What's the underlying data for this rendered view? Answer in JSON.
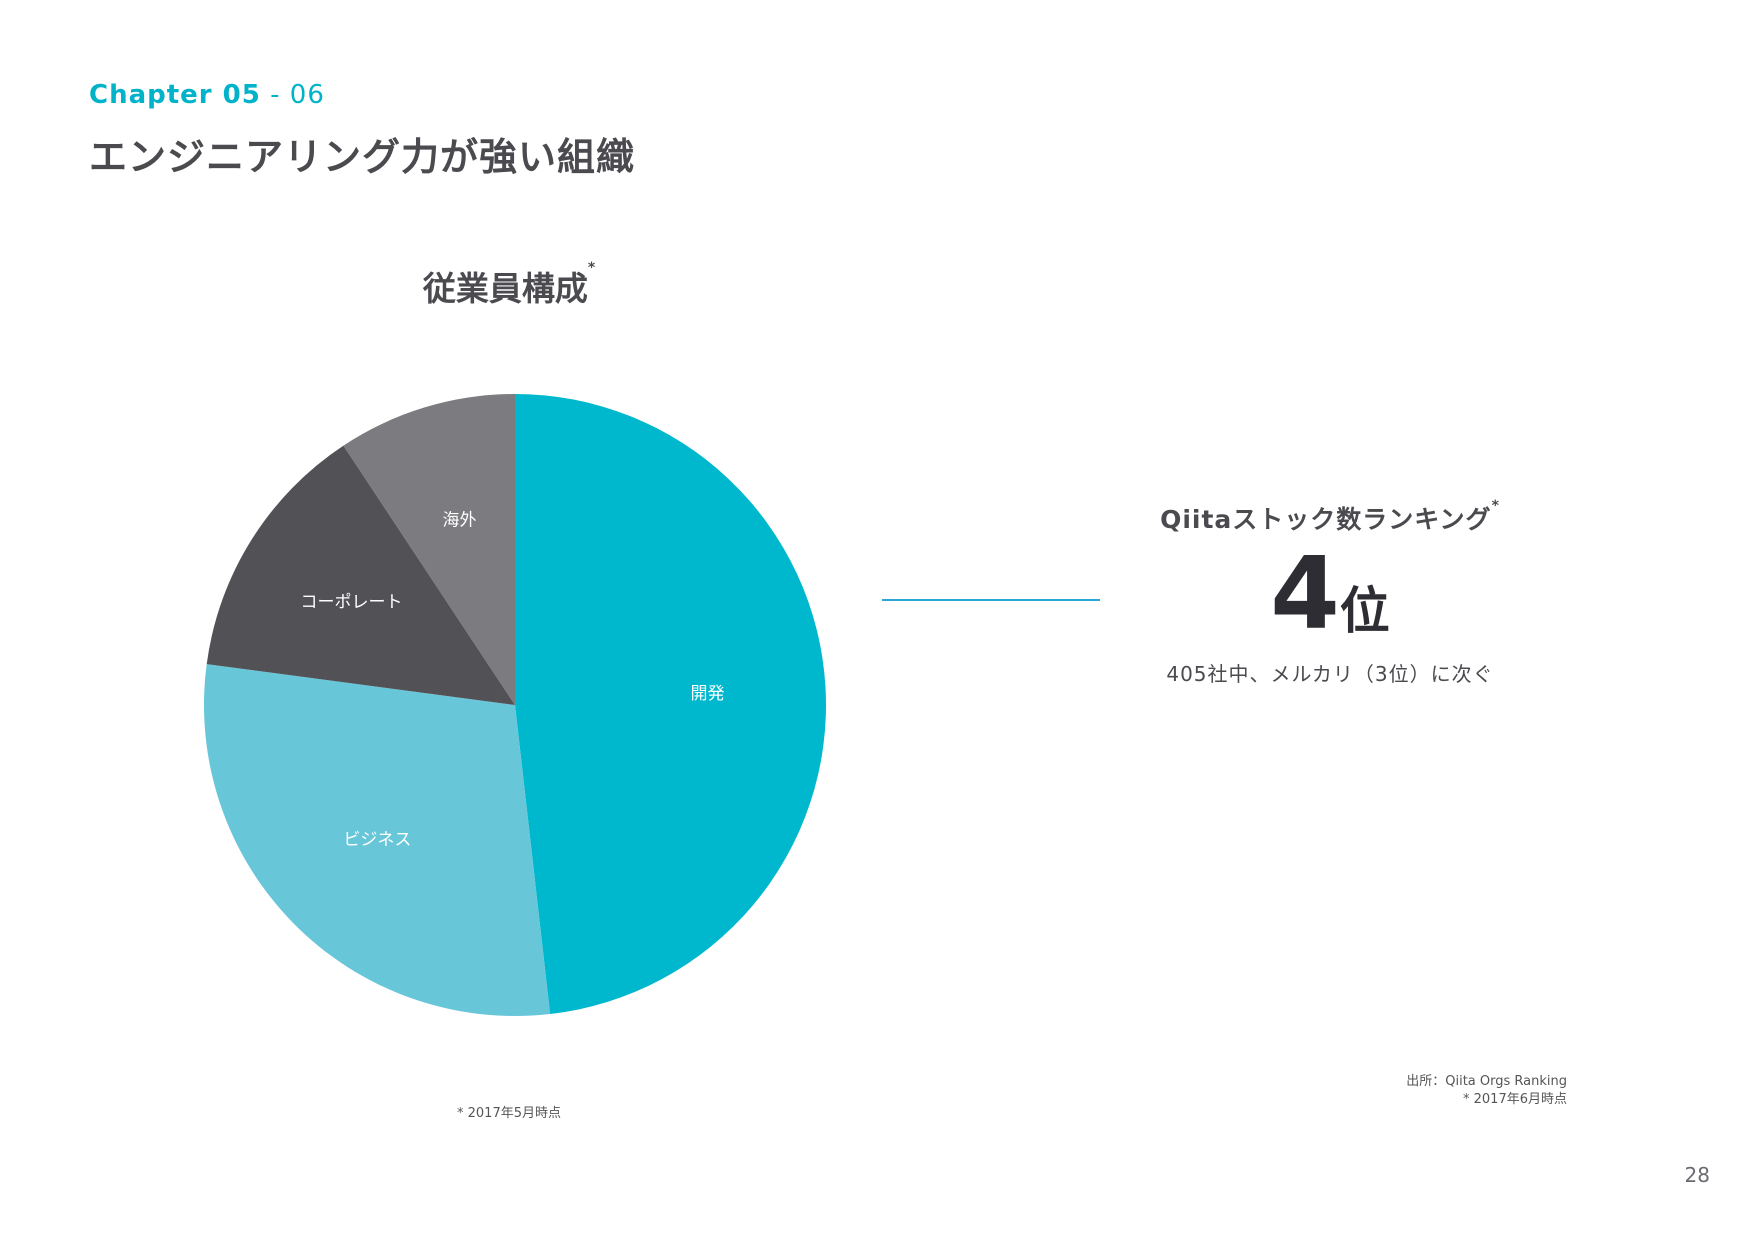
{
  "header": {
    "chapter_main": "Chapter 05",
    "chapter_sub": " - 06",
    "title": "エンジニアリング力が強い組織"
  },
  "chart_data": {
    "type": "pie",
    "title": "従業員構成",
    "title_mark": "*",
    "start_angle_deg": 0,
    "direction": "clockwise",
    "slices": [
      {
        "label": "開発",
        "value": 48.2,
        "color": "#00b8ce"
      },
      {
        "label": "ビジネス",
        "value": 28.9,
        "color": "#68c6d9"
      },
      {
        "label": "コーポレート",
        "value": 13.6,
        "color": "#525256"
      },
      {
        "label": "海外",
        "value": 9.3,
        "color": "#7c7c80"
      }
    ],
    "footnote": "* 2017年5月時点"
  },
  "ranking": {
    "title": "Qiitaストック数ランキング",
    "title_mark": "*",
    "value": "4",
    "unit": "位",
    "note": "405社中、メルカリ（3位）に次ぐ",
    "accent_color": "#29a8d6"
  },
  "source": {
    "line1": "出所：Qiita Orgs Ranking",
    "line2": "* 2017年6月時点"
  },
  "page_number": "28"
}
